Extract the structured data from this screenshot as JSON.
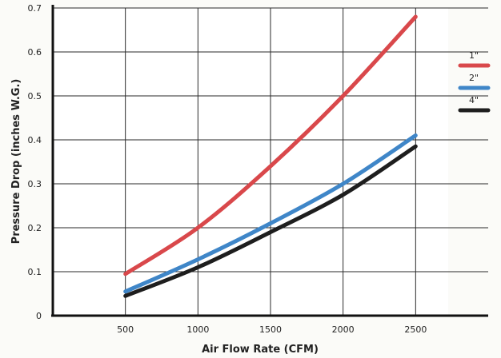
{
  "chart_data": {
    "type": "line",
    "title": "",
    "xlabel": "Air Flow Rate (CFM)",
    "ylabel": "Pressure Drop (inches W.G.)",
    "xlim": [
      0,
      3000
    ],
    "ylim": [
      0,
      0.7
    ],
    "x_ticks": [
      "500",
      "1000",
      "1500",
      "2000",
      "2500"
    ],
    "y_ticks": [
      "0",
      "0.1",
      "0.2",
      "0.3",
      "0.4",
      "0.5",
      "0.6",
      "0.7"
    ],
    "grid": true,
    "legend_position": "right",
    "x": [
      500,
      1000,
      1500,
      2000,
      2500
    ],
    "series": [
      {
        "name": "1\"",
        "color": "#d9484b",
        "values": [
          0.095,
          0.2,
          0.34,
          0.5,
          0.68
        ]
      },
      {
        "name": "2\"",
        "color": "#3f86c8",
        "values": [
          0.055,
          0.128,
          0.21,
          0.3,
          0.41
        ]
      },
      {
        "name": "4\"",
        "color": "#1e1e1e",
        "values": [
          0.045,
          0.11,
          0.19,
          0.275,
          0.385
        ]
      }
    ]
  }
}
